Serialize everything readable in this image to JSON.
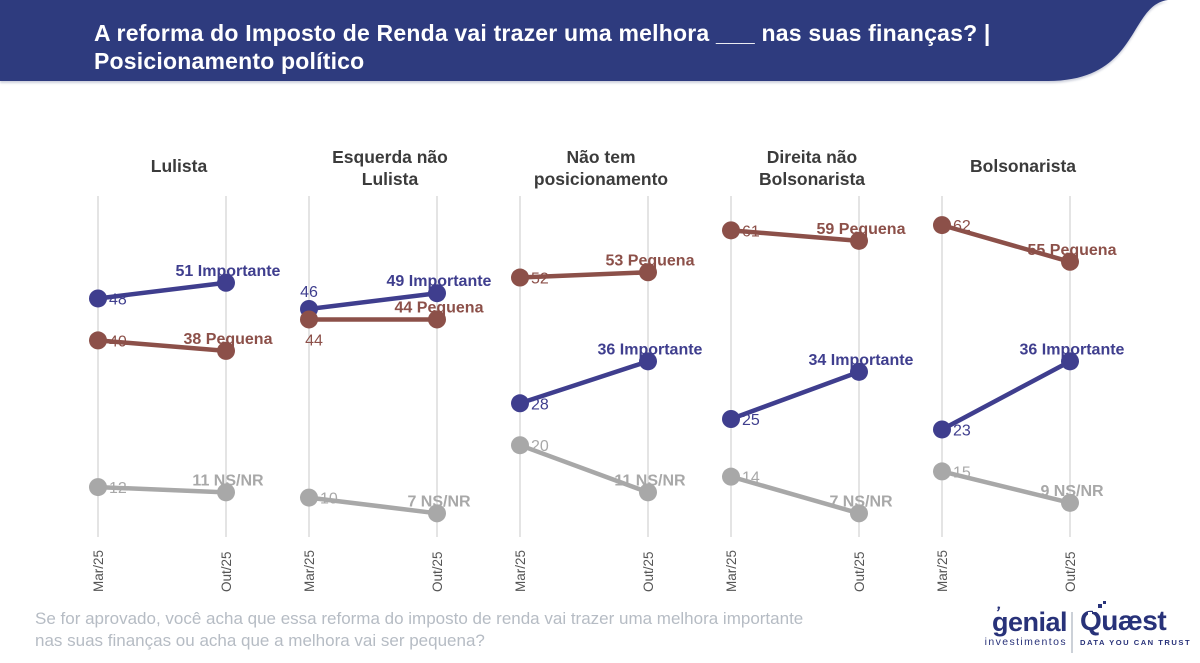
{
  "header": {
    "title_line1": "A reforma do Imposto de Renda vai trazer uma melhora ___ nas suas finanças? |",
    "title_line2": "Posicionamento político"
  },
  "footer": {
    "question_lines": [
      "Se for aprovado, você acha que essa reforma do imposto de renda vai trazer uma melhora importante",
      "nas suas finanças ou acha que a melhora vai ser pequena?"
    ],
    "logos": {
      "genial": {
        "name": "genial",
        "sub": "investimentos"
      },
      "quaest": {
        "name": "Quæst",
        "sub": "DATA YOU CAN TRUST"
      }
    }
  },
  "colors": {
    "banner": "#2e3b7e",
    "importante": "#3f3e8e",
    "pequena": "#8c5049",
    "nsnr": "#a8a8a8",
    "grid": "#e4e4e4",
    "panel_title": "#3b3b3b",
    "tick_label": "#555555",
    "footer_text": "#b6bcc4",
    "logo_navy": "#283279"
  },
  "chart_data": {
    "type": "line",
    "title": "A reforma do Imposto de Renda vai trazer uma melhora ___ nas suas finanças? | Posicionamento político",
    "x_labels": [
      "Mar/25",
      "Out/25"
    ],
    "ylim": [
      0,
      67
    ],
    "grid": "vertical-only",
    "legend": "inline-end-labels",
    "panels": [
      {
        "title": "Lulista",
        "title_lines": [
          "Lulista"
        ],
        "series": [
          {
            "name": "Importante",
            "values": [
              48,
              51
            ],
            "color_key": "importante",
            "start_label_pos": "right"
          },
          {
            "name": "Pequena",
            "values": [
              40,
              38
            ],
            "color_key": "pequena",
            "start_label_pos": "right"
          },
          {
            "name": "NS/NR",
            "values": [
              12,
              11
            ],
            "color_key": "nsnr",
            "start_label_pos": "right"
          }
        ]
      },
      {
        "title": "Esquerda não Lulista",
        "title_lines": [
          "Esquerda não",
          "Lulista"
        ],
        "series": [
          {
            "name": "Importante",
            "values": [
              46,
              49
            ],
            "color_key": "importante",
            "start_label_pos": "above"
          },
          {
            "name": "Pequena",
            "values": [
              44,
              44
            ],
            "color_key": "pequena",
            "start_label_pos": "below"
          },
          {
            "name": "NS/NR",
            "values": [
              10,
              7
            ],
            "color_key": "nsnr",
            "start_label_pos": "right"
          }
        ]
      },
      {
        "title": "Não tem posicionamento",
        "title_lines": [
          "Não tem",
          "posicionamento"
        ],
        "series": [
          {
            "name": "Pequena",
            "values": [
              52,
              53
            ],
            "color_key": "pequena",
            "start_label_pos": "right"
          },
          {
            "name": "Importante",
            "values": [
              28,
              36
            ],
            "color_key": "importante",
            "start_label_pos": "right"
          },
          {
            "name": "NS/NR",
            "values": [
              20,
              11
            ],
            "color_key": "nsnr",
            "start_label_pos": "right"
          }
        ]
      },
      {
        "title": "Direita não Bolsonarista",
        "title_lines": [
          "Direita não",
          "Bolsonarista"
        ],
        "series": [
          {
            "name": "Pequena",
            "values": [
              61,
              59
            ],
            "color_key": "pequena",
            "start_label_pos": "right"
          },
          {
            "name": "Importante",
            "values": [
              25,
              34
            ],
            "color_key": "importante",
            "start_label_pos": "right"
          },
          {
            "name": "NS/NR",
            "values": [
              14,
              7
            ],
            "color_key": "nsnr",
            "start_label_pos": "right"
          }
        ]
      },
      {
        "title": "Bolsonarista",
        "title_lines": [
          "Bolsonarista"
        ],
        "series": [
          {
            "name": "Pequena",
            "values": [
              62,
              55
            ],
            "color_key": "pequena",
            "start_label_pos": "right"
          },
          {
            "name": "Importante",
            "values": [
              23,
              36
            ],
            "color_key": "importante",
            "start_label_pos": "right"
          },
          {
            "name": "NS/NR",
            "values": [
              15,
              9
            ],
            "color_key": "nsnr",
            "start_label_pos": "right"
          }
        ]
      }
    ]
  }
}
